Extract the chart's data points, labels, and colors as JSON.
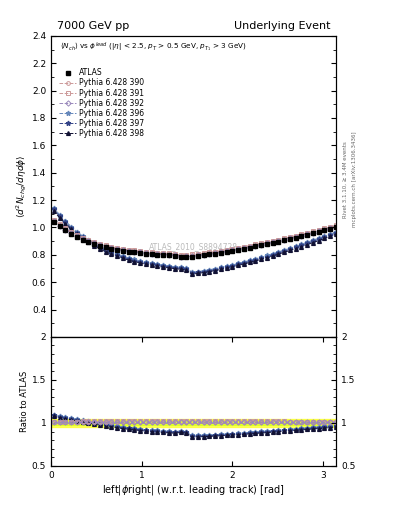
{
  "title_left": "7000 GeV pp",
  "title_right": "Underlying Event",
  "annotation": "ATLAS_2010_S8894728",
  "ylabel_main": "$\\langle d^2 N_{chg}/d\\eta d\\phi\\rangle$",
  "ylabel_ratio": "Ratio to ATLAS",
  "xlabel": "left|$\\phi$right| (w.r.t. leading track) [rad]",
  "right_label1": "Rivet 3.1.10, ≥ 3.4M events",
  "right_label2": "mcplots.cern.ch [arXiv:1306.3436]",
  "xlim": [
    0,
    3.14159
  ],
  "ylim_main": [
    0.2,
    2.4
  ],
  "ylim_ratio": [
    0.5,
    2.0
  ],
  "yticks_main": [
    0.4,
    0.6,
    0.8,
    1.0,
    1.2,
    1.4,
    1.6,
    1.8,
    2.0,
    2.2,
    2.4
  ],
  "yticks_ratio": [
    0.5,
    1.0,
    1.5,
    2.0
  ],
  "xticks": [
    0,
    1,
    2,
    3
  ],
  "series_labels": [
    "ATLAS",
    "Pythia 6.428 390",
    "Pythia 6.428 391",
    "Pythia 6.428 392",
    "Pythia 6.428 396",
    "Pythia 6.428 397",
    "Pythia 6.428 398"
  ],
  "series_colors": [
    "#000000",
    "#cc9999",
    "#cc9999",
    "#9988bb",
    "#6688bb",
    "#334488",
    "#111133"
  ],
  "series_markers": [
    "s",
    "o",
    "s",
    "D",
    "*",
    "*",
    "^"
  ],
  "background_color": "#ffffff"
}
